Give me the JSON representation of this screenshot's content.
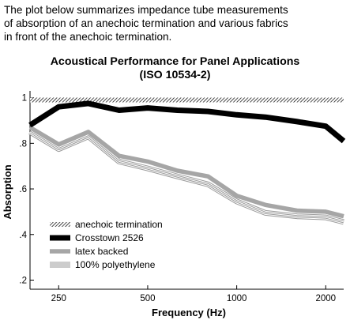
{
  "intro": {
    "lines": [
      "The plot below summarizes impedance tube measurements",
      "of absorption of an anechoic termination and various fabrics",
      "in front of the anechoic termination."
    ]
  },
  "chart_data": {
    "type": "line",
    "title_lines": [
      "Acoustical Performance for Panel Applications",
      "(ISO 10534-2)"
    ],
    "xlabel": "Frequency (Hz)",
    "ylabel": "Absorption",
    "x_scale": "log",
    "xlim": [
      200,
      2300
    ],
    "ylim": [
      0.16,
      1.03
    ],
    "x_ticks": [
      250,
      500,
      1000,
      2000
    ],
    "x_tick_labels": [
      "250",
      "500",
      "1000",
      "2000"
    ],
    "y_ticks": [
      0.2,
      0.4,
      0.6,
      0.8,
      1.0
    ],
    "y_tick_labels": [
      ".2",
      ".4",
      ".6",
      ".8",
      "1"
    ],
    "grid": false,
    "legend_position": "bottom-left",
    "x": [
      200,
      250,
      315,
      400,
      500,
      630,
      800,
      1000,
      1250,
      1600,
      2000,
      2300
    ],
    "series": [
      {
        "name": "anechoic termination",
        "style": "hatched",
        "color": "#000000",
        "values": [
          0.99,
          0.99,
          0.99,
          0.99,
          0.99,
          0.99,
          0.99,
          0.99,
          0.99,
          0.99,
          0.99,
          0.99
        ]
      },
      {
        "name": "Crosstown 2526",
        "style": "thick",
        "color": "#000000",
        "values": [
          0.88,
          0.96,
          0.975,
          0.945,
          0.955,
          0.945,
          0.94,
          0.925,
          0.915,
          0.895,
          0.875,
          0.81
        ]
      },
      {
        "name": "latex backed",
        "style": "gray",
        "color": "#a6a6a6",
        "values": [
          0.87,
          0.795,
          0.85,
          0.745,
          0.72,
          0.68,
          0.655,
          0.57,
          0.53,
          0.505,
          0.5,
          0.48
        ]
      },
      {
        "name": "100% polyethylene",
        "style": "triple",
        "color": "#9a9a9a",
        "values": [
          0.85,
          0.775,
          0.83,
          0.72,
          0.69,
          0.655,
          0.62,
          0.545,
          0.495,
          0.48,
          0.475,
          0.455
        ]
      }
    ]
  }
}
